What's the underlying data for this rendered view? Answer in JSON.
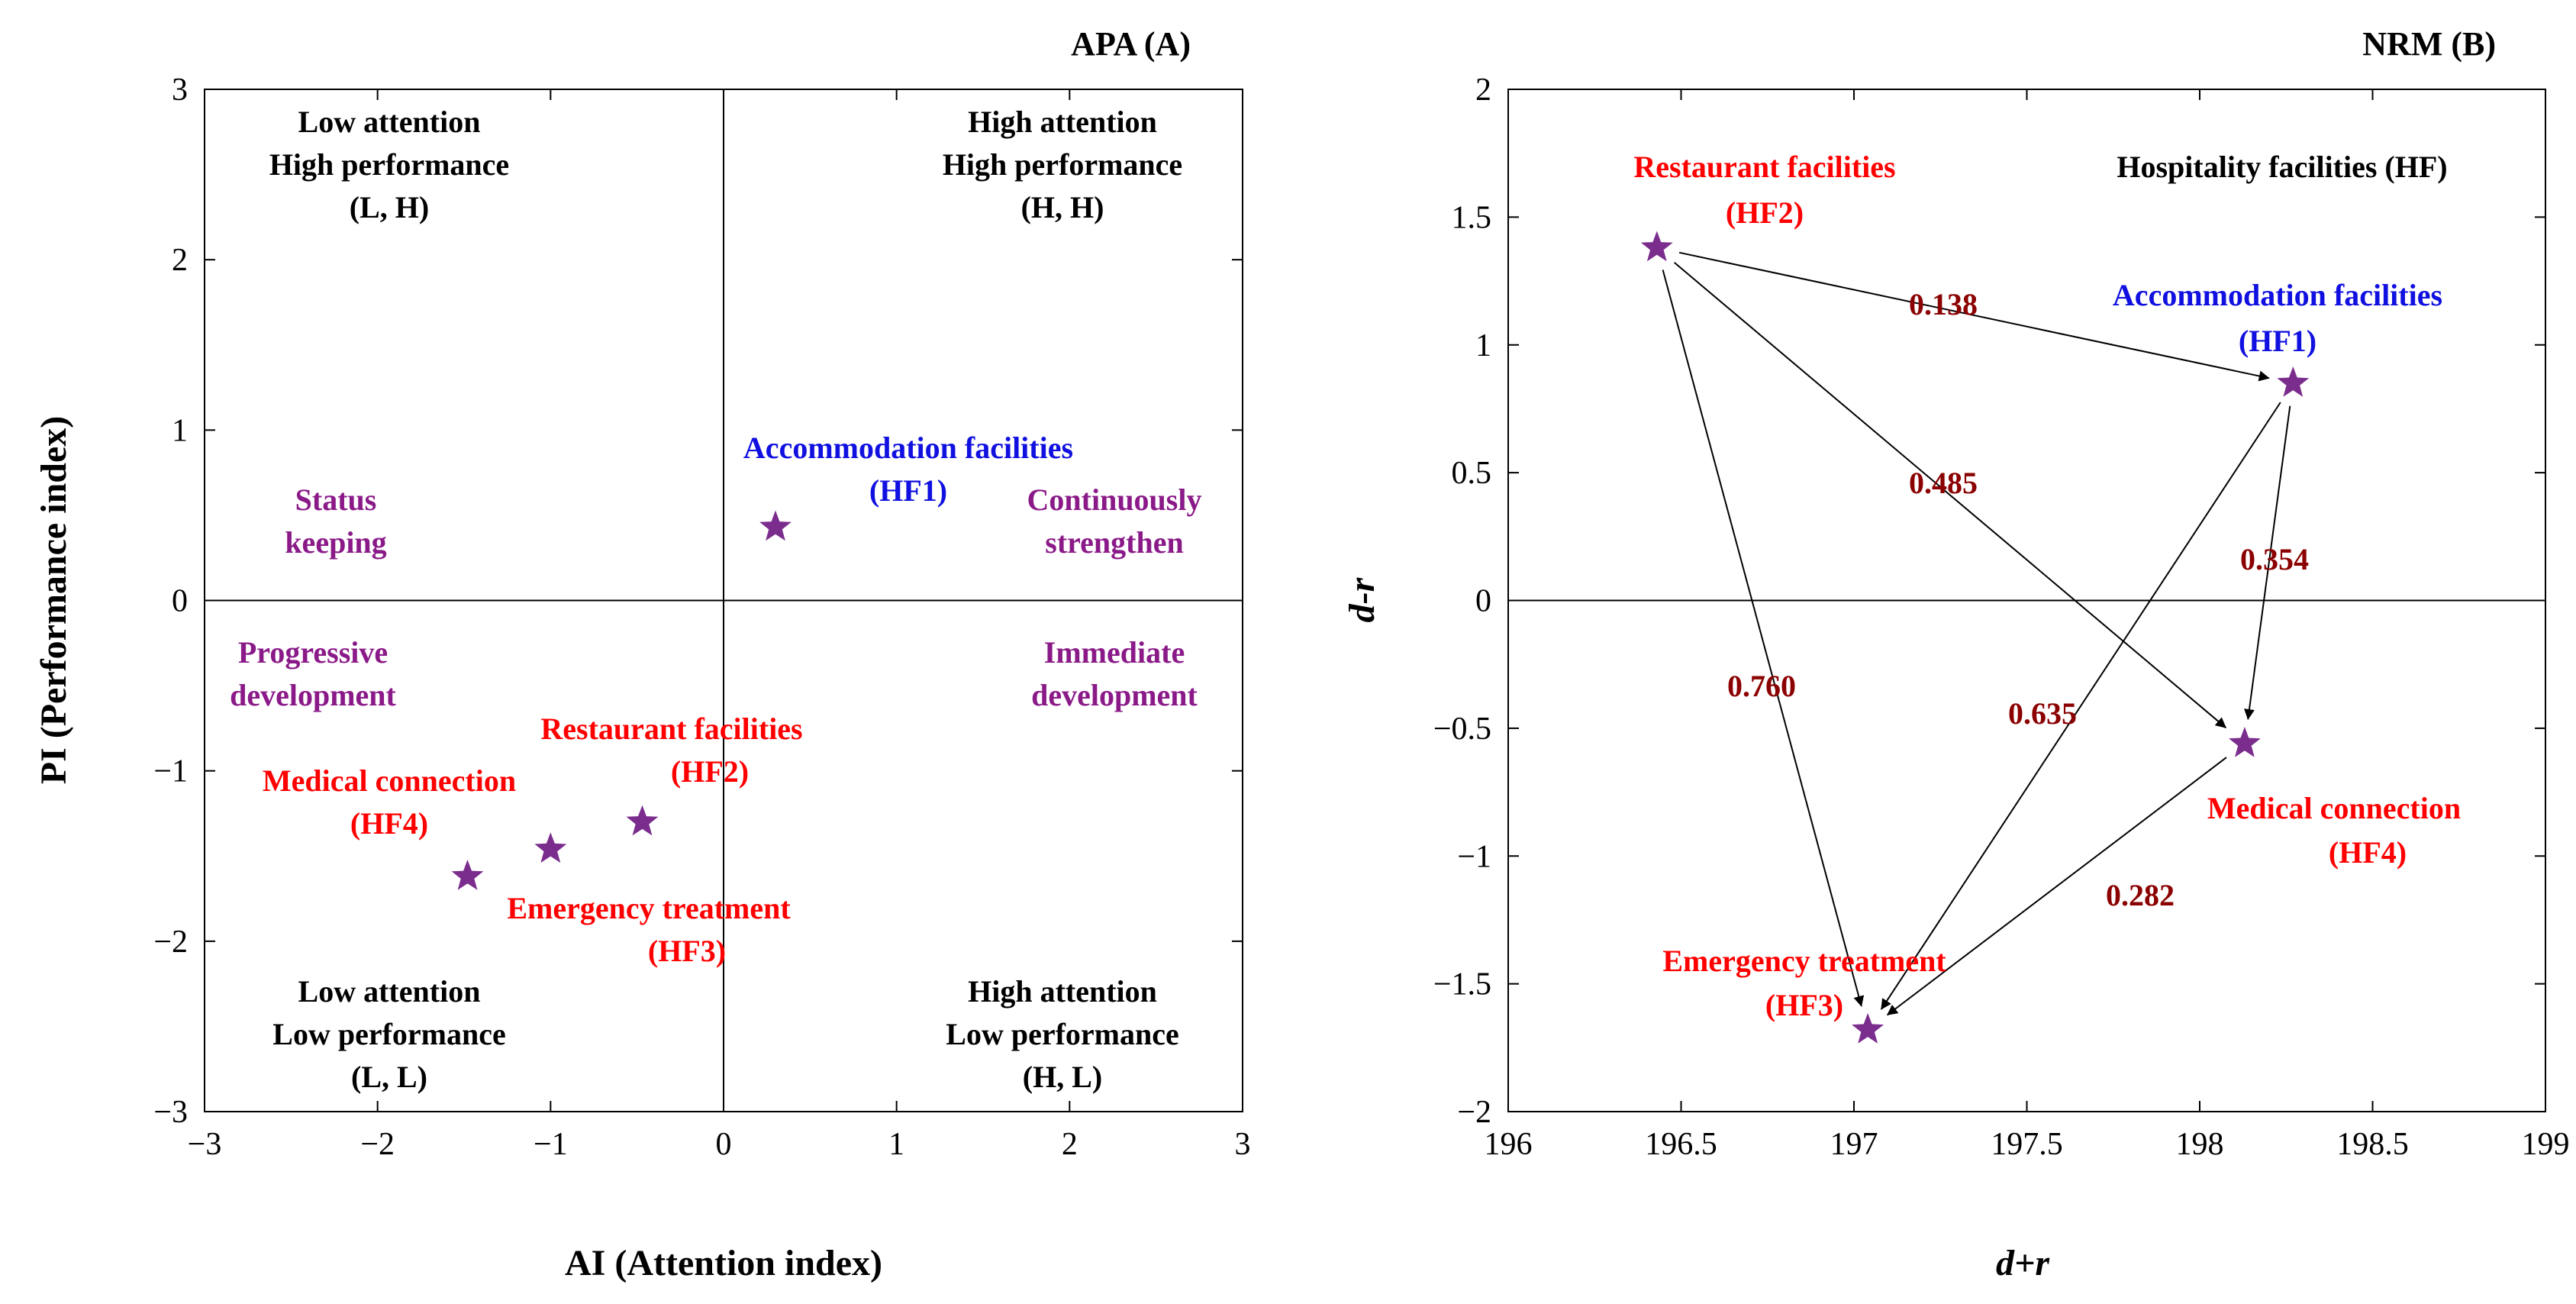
{
  "colors": {
    "star": "#7B2D8E",
    "red": "#FF0000",
    "blue": "#1010E0",
    "purple": "#8B1A89",
    "black": "#000000",
    "weight": "#8B0000"
  },
  "chart_data": [
    {
      "type": "scatter",
      "title": "APA (A)",
      "xlabel": "AI (Attention index)",
      "ylabel": "PI (Performance index)",
      "xlim": [
        -3,
        3
      ],
      "ylim": [
        -3,
        3
      ],
      "xticks": [
        -3,
        -2,
        -1,
        0,
        1,
        2,
        3
      ],
      "yticks": [
        -3,
        -2,
        -1,
        0,
        1,
        2,
        3
      ],
      "xtick_labels": [
        "−3",
        "−2",
        "−1",
        "0",
        "1",
        "2",
        "3"
      ],
      "ytick_labels": [
        "−3",
        "−2",
        "−1",
        "0",
        "1",
        "2",
        "3"
      ],
      "reference_lines": {
        "x": 0,
        "y": 0
      },
      "points": [
        {
          "id": "HF1",
          "x": 0.3,
          "y": 0.43,
          "name": "Accommodation facilities",
          "code": "(HF1)",
          "color_key": "blue"
        },
        {
          "id": "HF2",
          "x": -0.47,
          "y": -1.3,
          "name": "Restaurant facilities",
          "code": "(HF2)",
          "color_key": "red"
        },
        {
          "id": "HF4",
          "x": -1.0,
          "y": -1.46,
          "name": "Medical connection",
          "code": "(HF4)",
          "color_key": "red"
        },
        {
          "id": "HF3",
          "x": -1.48,
          "y": -1.62,
          "name": "Emergency treatment",
          "code": "(HF3)",
          "color_key": "red"
        }
      ],
      "quadrant_labels": [
        {
          "id": "tl",
          "lines": [
            "Low attention",
            "High performance",
            "(L, H)"
          ]
        },
        {
          "id": "tr",
          "lines": [
            "High attention",
            "High performance",
            "(H, H)"
          ]
        },
        {
          "id": "bl",
          "lines": [
            "Low attention",
            "Low performance",
            "(L, L)"
          ]
        },
        {
          "id": "br",
          "lines": [
            "High attention",
            "Low performance",
            "(H, L)"
          ]
        }
      ],
      "strategy_labels": [
        {
          "id": "status",
          "lines": [
            "Status",
            "keeping"
          ]
        },
        {
          "id": "strengthen",
          "lines": [
            "Continuously",
            "strengthen"
          ]
        },
        {
          "id": "progressive",
          "lines": [
            "Progressive",
            "development"
          ]
        },
        {
          "id": "immediate",
          "lines": [
            "Immediate",
            "development"
          ]
        }
      ]
    },
    {
      "type": "scatter",
      "title": "NRM (B)",
      "xlabel": "d+r",
      "ylabel": "d-r",
      "xlim": [
        196,
        199
      ],
      "ylim": [
        -2,
        2
      ],
      "xticks": [
        196,
        196.5,
        197,
        197.5,
        198,
        198.5,
        199
      ],
      "yticks": [
        -2,
        -1.5,
        -1,
        -0.5,
        0,
        0.5,
        1,
        1.5,
        2
      ],
      "xtick_labels": [
        "196",
        "196.5",
        "197",
        "197.5",
        "198",
        "198.5",
        "199"
      ],
      "ytick_labels": [
        "−2",
        "−1.5",
        "−1",
        "−0.5",
        "0",
        "0.5",
        "1",
        "1.5",
        "2"
      ],
      "reference_lines": {
        "y": 0
      },
      "legend_text": "Hospitality facilities (HF)",
      "points": [
        {
          "id": "HF2",
          "x": 196.43,
          "y": 1.38,
          "name": "Restaurant facilities",
          "code": "(HF2)",
          "color_key": "red"
        },
        {
          "id": "HF1",
          "x": 198.27,
          "y": 0.85,
          "name": "Accommodation facilities",
          "code": "(HF1)",
          "color_key": "blue"
        },
        {
          "id": "HF4",
          "x": 198.13,
          "y": -0.56,
          "name": "Medical connection",
          "code": "(HF4)",
          "color_key": "red"
        },
        {
          "id": "HF3",
          "x": 197.04,
          "y": -1.68,
          "name": "Emergency treatment",
          "code": "(HF3)",
          "color_key": "red"
        }
      ],
      "edges": [
        {
          "from": "HF2",
          "to": "HF1",
          "weight": "0.138"
        },
        {
          "from": "HF2",
          "to": "HF4",
          "weight": "0.485"
        },
        {
          "from": "HF2",
          "to": "HF3",
          "weight": "0.760"
        },
        {
          "from": "HF1",
          "to": "HF4",
          "weight": "0.354"
        },
        {
          "from": "HF1",
          "to": "HF3",
          "weight": "0.635"
        },
        {
          "from": "HF4",
          "to": "HF3",
          "weight": "0.282"
        }
      ]
    }
  ]
}
